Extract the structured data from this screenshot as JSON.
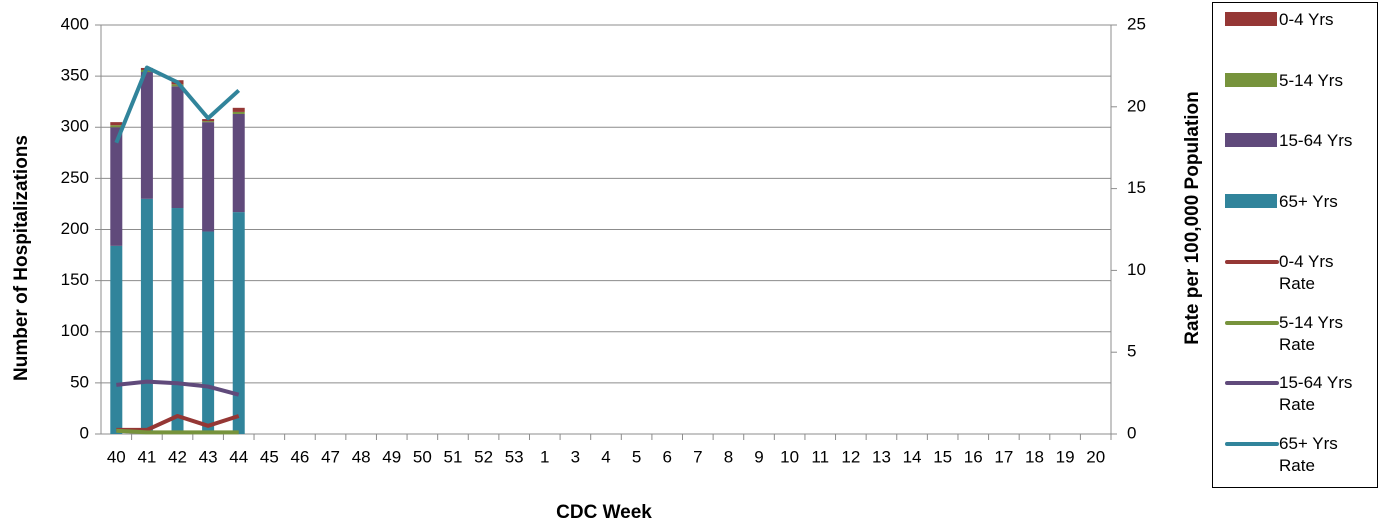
{
  "chart_data": {
    "type": "bar-line",
    "xlabel": "CDC Week",
    "ylabel": "Number of Hospitalizations",
    "y2label": "Rate per 100,000 Population",
    "categories": [
      "40",
      "41",
      "42",
      "43",
      "44",
      "45",
      "46",
      "47",
      "48",
      "49",
      "50",
      "51",
      "52",
      "53",
      "1",
      "3",
      "4",
      "5",
      "6",
      "7",
      "8",
      "9",
      "10",
      "11",
      "12",
      "13",
      "14",
      "15",
      "16",
      "17",
      "18",
      "19",
      "20"
    ],
    "ylim": [
      0,
      400
    ],
    "yticks": [
      0,
      50,
      100,
      150,
      200,
      250,
      300,
      350,
      400
    ],
    "y2lim": [
      0,
      25
    ],
    "y2ticks": [
      0,
      5,
      10,
      15,
      20,
      25
    ],
    "grid": true,
    "legend": "right",
    "stacked": true,
    "series": [
      {
        "name": "0-4 Yrs",
        "type": "bar",
        "color": "#953735",
        "values": [
          3,
          2,
          4,
          2,
          4,
          null,
          null,
          null,
          null,
          null,
          null,
          null,
          null,
          null,
          null,
          null,
          null,
          null,
          null,
          null,
          null,
          null,
          null,
          null,
          null,
          null,
          null,
          null,
          null,
          null,
          null,
          null,
          null
        ]
      },
      {
        "name": "5-14 Yrs",
        "type": "bar",
        "color": "#77933c",
        "values": [
          2,
          2,
          2,
          1,
          2,
          null,
          null,
          null,
          null,
          null,
          null,
          null,
          null,
          null,
          null,
          null,
          null,
          null,
          null,
          null,
          null,
          null,
          null,
          null,
          null,
          null,
          null,
          null,
          null,
          null,
          null,
          null,
          null
        ]
      },
      {
        "name": "15-64 Yrs",
        "type": "bar",
        "color": "#604a7b",
        "values": [
          116,
          124,
          119,
          107,
          96,
          null,
          null,
          null,
          null,
          null,
          null,
          null,
          null,
          null,
          null,
          null,
          null,
          null,
          null,
          null,
          null,
          null,
          null,
          null,
          null,
          null,
          null,
          null,
          null,
          null,
          null,
          null,
          null
        ]
      },
      {
        "name": "65+ Yrs",
        "type": "bar",
        "color": "#31849b",
        "values": [
          184,
          230,
          221,
          198,
          217,
          null,
          null,
          null,
          null,
          null,
          null,
          null,
          null,
          null,
          null,
          null,
          null,
          null,
          null,
          null,
          null,
          null,
          null,
          null,
          null,
          null,
          null,
          null,
          null,
          null,
          null,
          null,
          null
        ]
      },
      {
        "name": "0-4 Yrs Rate",
        "type": "line",
        "axis": "y2",
        "color": "#953735",
        "values": [
          0.25,
          0.25,
          1.1,
          0.5,
          1.1,
          null,
          null,
          null,
          null,
          null,
          null,
          null,
          null,
          null,
          null,
          null,
          null,
          null,
          null,
          null,
          null,
          null,
          null,
          null,
          null,
          null,
          null,
          null,
          null,
          null,
          null,
          null,
          null
        ]
      },
      {
        "name": "5-14 Yrs Rate",
        "type": "line",
        "axis": "y2",
        "color": "#77933c",
        "values": [
          0.2,
          0.1,
          0.1,
          0.1,
          0.1,
          null,
          null,
          null,
          null,
          null,
          null,
          null,
          null,
          null,
          null,
          null,
          null,
          null,
          null,
          null,
          null,
          null,
          null,
          null,
          null,
          null,
          null,
          null,
          null,
          null,
          null,
          null,
          null
        ]
      },
      {
        "name": "15-64 Yrs Rate",
        "type": "line",
        "axis": "y2",
        "color": "#604a7b",
        "values": [
          3.0,
          3.2,
          3.1,
          2.9,
          2.4,
          null,
          null,
          null,
          null,
          null,
          null,
          null,
          null,
          null,
          null,
          null,
          null,
          null,
          null,
          null,
          null,
          null,
          null,
          null,
          null,
          null,
          null,
          null,
          null,
          null,
          null,
          null,
          null
        ]
      },
      {
        "name": "65+ Yrs Rate",
        "type": "line",
        "axis": "y2",
        "color": "#31849b",
        "values": [
          17.8,
          22.4,
          21.5,
          19.3,
          21.0,
          null,
          null,
          null,
          null,
          null,
          null,
          null,
          null,
          null,
          null,
          null,
          null,
          null,
          null,
          null,
          null,
          null,
          null,
          null,
          null,
          null,
          null,
          null,
          null,
          null,
          null,
          null,
          null
        ]
      }
    ]
  }
}
